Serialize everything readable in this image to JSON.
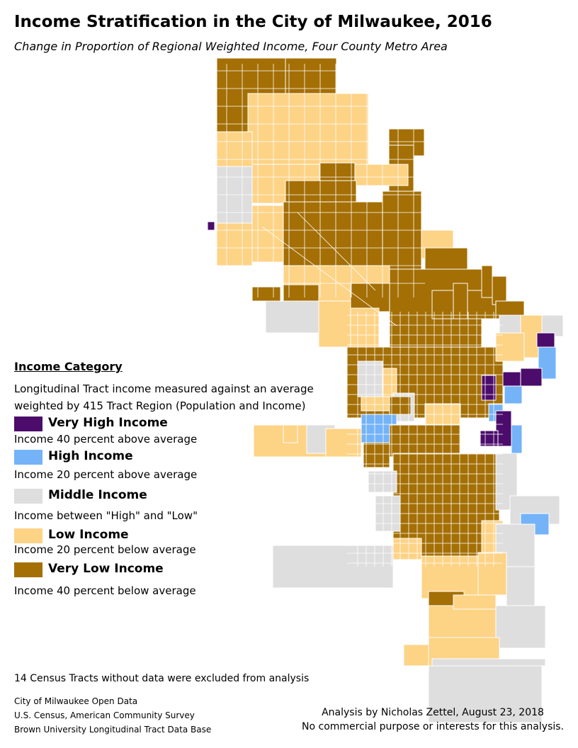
{
  "title": "Income Stratification in the City of Milwaukee, 2016",
  "subtitle": "Change in Proportion of Regional Weighted Income, Four County Metro Area",
  "colors": {
    "very_high": "#4b0c6b",
    "high": "#74b3f7",
    "middle": "#dedede",
    "low": "#fdd386",
    "very_low": "#a46f04",
    "tract_border": "#ffffff"
  },
  "legend": {
    "heading": "Income Category",
    "description_line1": "Longitudinal Tract income measured against an average",
    "description_line2": "weighted by 415 Tract Region (Population and Income)",
    "categories": [
      {
        "key": "very_high",
        "label": "Very High Income",
        "description": "Income 40 percent above average"
      },
      {
        "key": "high",
        "label": "High Income",
        "description": "Income 20 percent above average"
      },
      {
        "key": "middle",
        "label": "Middle Income",
        "description": "Income between \"High\" and \"Low\""
      },
      {
        "key": "low",
        "label": "Low Income",
        "description": "Income 20 percent below average"
      },
      {
        "key": "very_low",
        "label": "Very Low Income",
        "description": "Income 40 percent below average"
      }
    ]
  },
  "note": "14 Census Tracts without data were excluded from analysis",
  "sources": [
    "City of Milwaukee Open Data",
    "U.S. Census, American Community Survey",
    "Brown University Longitudinal Tract Data Base"
  ],
  "credit": {
    "line1": "Analysis by Nicholas Zettel, August 23, 2018",
    "line2": "No commercial purpose or interests for this analysis."
  }
}
